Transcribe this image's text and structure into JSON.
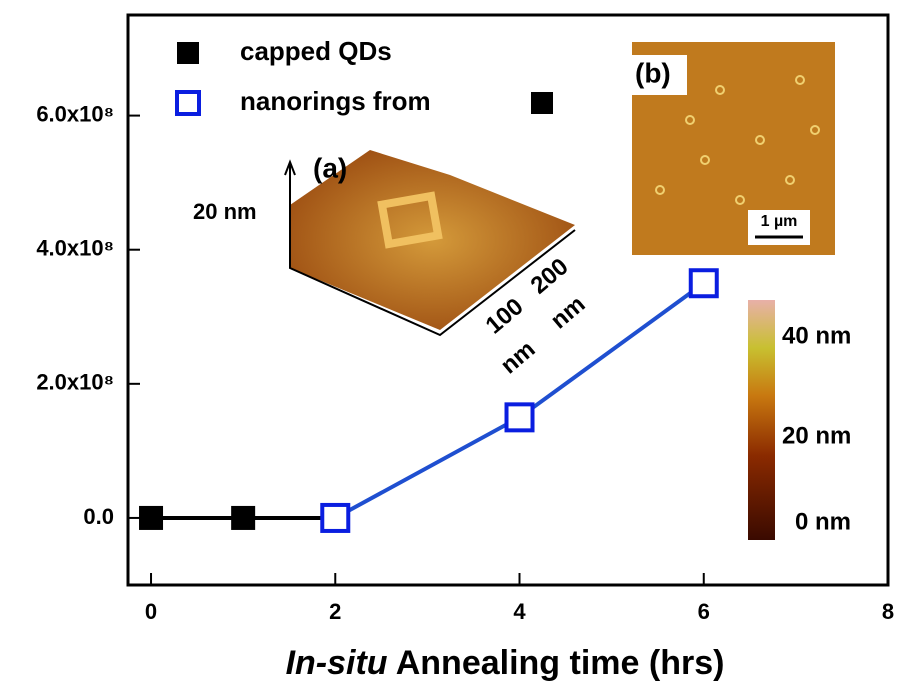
{
  "chart_data": {
    "type": "line",
    "xlabel": [
      "In-situ",
      "Annealing time (hrs)"
    ],
    "xlim": [
      -0.25,
      8
    ],
    "xticks": [
      0,
      2,
      4,
      6,
      8
    ],
    "ylim": [
      -100000000,
      750000000
    ],
    "yticks": [
      {
        "value": 0,
        "label": "0.0"
      },
      {
        "value": 200000000,
        "label": "2.0x10⁸"
      },
      {
        "value": 400000000,
        "label": "4.0x10⁸"
      },
      {
        "value": 600000000,
        "label": "6.0x10⁸"
      }
    ],
    "legend": "upper left",
    "series": [
      {
        "name": "capped QDs",
        "color": "#000000",
        "marker": "filled-square",
        "x": [
          0,
          1,
          2
        ],
        "values": [
          0,
          0,
          0
        ]
      },
      {
        "name": "nanorings from",
        "color": "#0a1ee0",
        "line_color": "#1f4fd0",
        "marker": "open-square",
        "x": [
          2,
          4,
          6
        ],
        "values": [
          0,
          150000000,
          350000000
        ]
      }
    ],
    "annotations": [
      "(a)",
      "20 nm",
      "100",
      "200",
      "nm",
      "nm",
      "(b)",
      "1 µm",
      "40 nm",
      "20 nm",
      "0 nm"
    ]
  }
}
